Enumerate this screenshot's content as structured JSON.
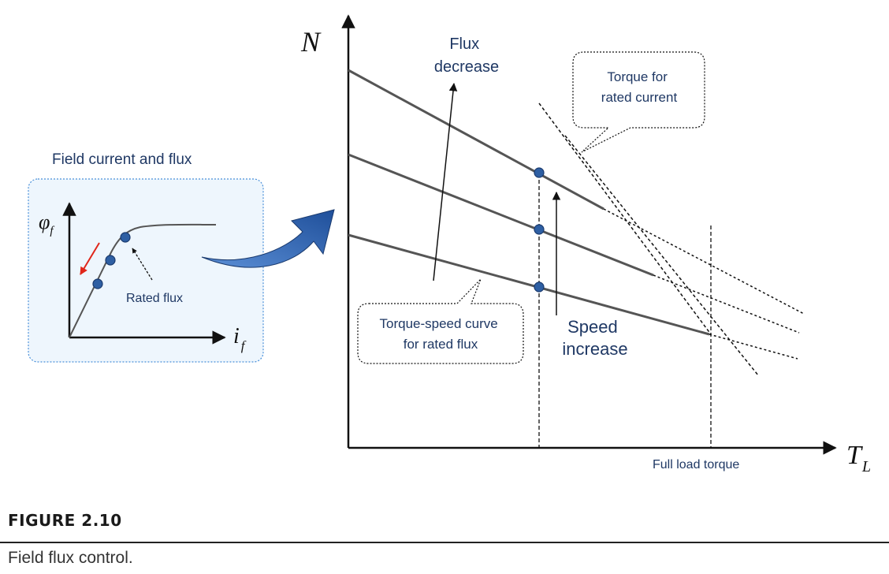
{
  "inset": {
    "title": "Field current and flux",
    "y_axis_symbol": "φ",
    "y_axis_subscript": "f",
    "x_axis_symbol": "i",
    "x_axis_subscript": "f",
    "rated_flux_label": "Rated flux"
  },
  "main": {
    "y_axis_label": "N",
    "x_axis_symbol": "T",
    "x_axis_subscript": "L",
    "flux_decrease_lines": [
      "Flux",
      "decrease"
    ],
    "torque_rated_current_lines": [
      "Torque for",
      "rated current"
    ],
    "torque_speed_curve_lines": [
      "Torque-speed curve",
      "for rated flux"
    ],
    "speed_increase_lines": [
      "Speed",
      "increase"
    ],
    "full_load_torque": "Full load torque"
  },
  "figure": {
    "label": "FIGURE 2.10",
    "caption": "Field flux control."
  },
  "colors": {
    "curve": "#555555",
    "marker_fill": "#2e5fa3",
    "marker_stroke": "#1a3a6e",
    "text": "#1f3864",
    "arrow_red": "#e0261a",
    "inset_fill": "#eef6fd",
    "inset_border": "#4a90d9",
    "big_arrow": "#2f63b5"
  }
}
